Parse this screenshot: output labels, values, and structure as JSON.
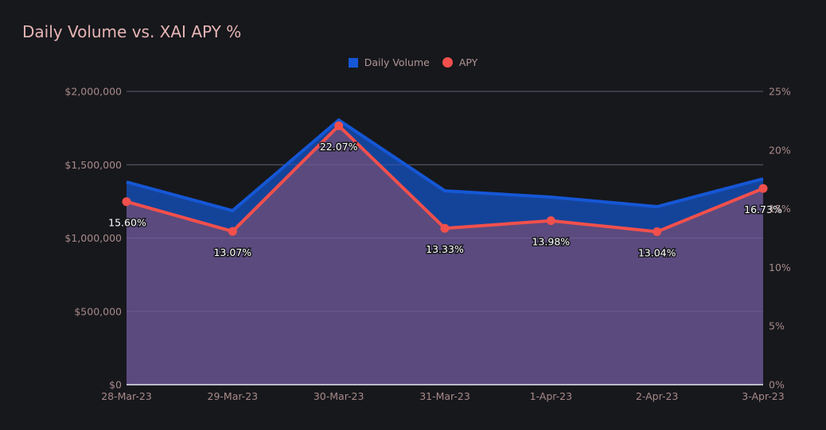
{
  "chart_data": {
    "type": "area",
    "title": "Daily Volume vs. XAI APY %",
    "categories": [
      "28-Mar-23",
      "29-Mar-23",
      "30-Mar-23",
      "31-Mar-23",
      "1-Apr-23",
      "2-Apr-23",
      "3-Apr-23"
    ],
    "series": [
      {
        "name": "Daily Volume",
        "type": "area",
        "axis": "left",
        "color": "#1557d6",
        "fill": "#14449a",
        "values": [
          1382000,
          1187000,
          1805000,
          1322000,
          1279000,
          1214000,
          1404000
        ]
      },
      {
        "name": "APY",
        "type": "line",
        "axis": "right",
        "color": "#f2504c",
        "fill": "#5b4a7e",
        "values": [
          15.6,
          13.07,
          22.07,
          13.33,
          13.98,
          13.04,
          16.73
        ],
        "labels": [
          "15.60%",
          "13.07%",
          "22.07%",
          "13.33%",
          "13.98%",
          "13.04%",
          "16.73%"
        ]
      }
    ],
    "y_left": {
      "range": [
        0,
        2000000
      ],
      "ticks": [
        0,
        500000,
        1000000,
        1500000,
        2000000
      ],
      "tick_labels": [
        "$0",
        "$500,000",
        "$1,000,000",
        "$1,500,000",
        "$2,000,000"
      ]
    },
    "y_right": {
      "range": [
        0,
        25
      ],
      "ticks": [
        0,
        5,
        10,
        15,
        20,
        25
      ],
      "tick_labels": [
        "0%",
        "5%",
        "10%",
        "15%",
        "20%",
        "25%"
      ]
    },
    "xlabel": "",
    "ylabel": "",
    "grid": true,
    "legend": "top-center"
  },
  "legend": {
    "items": [
      {
        "label": "Daily Volume",
        "icon": "square"
      },
      {
        "label": "APY",
        "icon": "circle"
      }
    ]
  }
}
